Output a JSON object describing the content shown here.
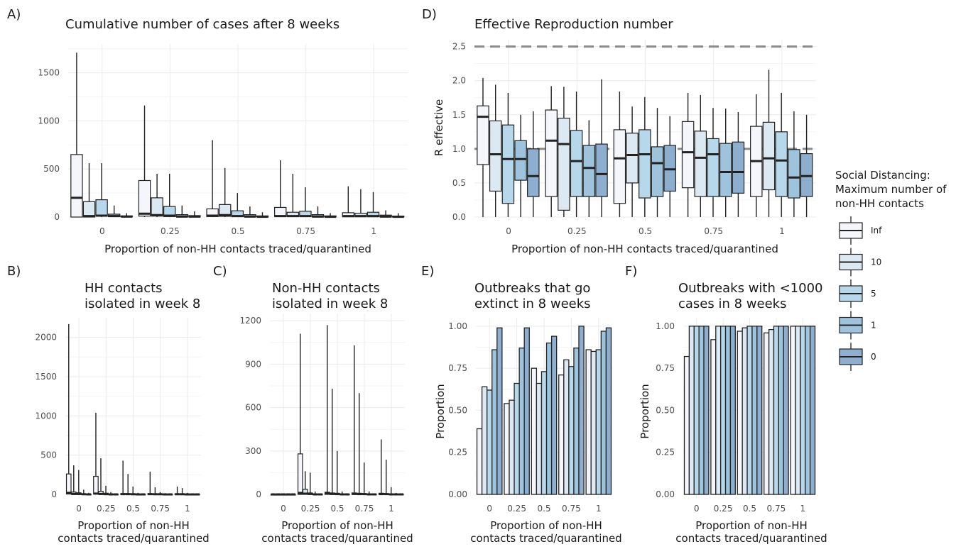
{
  "colors": {
    "Inf": "#f4f6fb",
    "10": "#dce9f3",
    "5": "#b7d8ea",
    "1": "#9ec3dc",
    "0": "#8eaed0",
    "refline": "#8a8a8a"
  },
  "legend": {
    "title_lines": [
      "Social Distancing:",
      "Maximum number of",
      "non-HH contacts"
    ],
    "items": [
      "Inf",
      "10",
      "5",
      "1",
      "0"
    ]
  },
  "chart_data": [
    {
      "id": "A",
      "letter": "A)",
      "type": "boxplot",
      "title_lines": [
        "Cumulative number of cases after 8 weeks"
      ],
      "xlabel_lines": [
        "Proportion of non-HH contacts traced/quarantined"
      ],
      "ylabel": "",
      "categories": [
        "0",
        "0.25",
        "0.5",
        "0.75",
        "1"
      ],
      "ylim": [
        0,
        1800
      ],
      "yticks": [
        0,
        500,
        1000,
        1500
      ],
      "ytick_labels": [
        "0",
        "500",
        "1000",
        "1500"
      ],
      "series_order": [
        "Inf",
        "10",
        "5",
        "1",
        "0"
      ],
      "boxes": [
        [
          [
            0,
            0,
            200,
            650,
            1710
          ],
          [
            0,
            0,
            10,
            160,
            560
          ],
          [
            0,
            10,
            15,
            180,
            560
          ],
          [
            0,
            5,
            10,
            30,
            120
          ],
          [
            0,
            3,
            5,
            12,
            40
          ]
        ],
        [
          [
            0,
            10,
            35,
            380,
            1160
          ],
          [
            0,
            10,
            20,
            200,
            450
          ],
          [
            0,
            5,
            15,
            110,
            450
          ],
          [
            0,
            3,
            5,
            25,
            120
          ],
          [
            0,
            2,
            5,
            15,
            60
          ]
        ],
        [
          [
            0,
            5,
            15,
            85,
            800
          ],
          [
            0,
            8,
            20,
            130,
            510
          ],
          [
            0,
            5,
            10,
            65,
            250
          ],
          [
            0,
            3,
            5,
            25,
            110
          ],
          [
            0,
            2,
            3,
            12,
            50
          ]
        ],
        [
          [
            0,
            5,
            10,
            100,
            590
          ],
          [
            0,
            5,
            10,
            50,
            450
          ],
          [
            0,
            5,
            10,
            60,
            310
          ],
          [
            0,
            2,
            5,
            25,
            110
          ],
          [
            0,
            2,
            3,
            12,
            40
          ]
        ],
        [
          [
            0,
            3,
            10,
            45,
            320
          ],
          [
            0,
            3,
            10,
            40,
            290
          ],
          [
            0,
            3,
            10,
            50,
            260
          ],
          [
            0,
            2,
            5,
            20,
            70
          ],
          [
            0,
            2,
            3,
            10,
            40
          ]
        ]
      ]
    },
    {
      "id": "D",
      "letter": "D)",
      "type": "boxplot",
      "title_lines": [
        "Effective Reproduction number"
      ],
      "xlabel_lines": [
        "Proportion of non-HH contacts traced/quarantined"
      ],
      "ylabel": "R effective",
      "categories": [
        "0",
        "0.25",
        "0.5",
        "0.75",
        "1"
      ],
      "ylim": [
        0,
        2.6
      ],
      "yticks": [
        0,
        0.5,
        1,
        1.5,
        2,
        2.5
      ],
      "ytick_labels": [
        "0.0",
        "0.5",
        "1.0",
        "1.5",
        "2.0",
        "2.5"
      ],
      "reference_lines": [
        1.0,
        2.5
      ],
      "series_order": [
        "Inf",
        "10",
        "5",
        "1",
        "0"
      ],
      "boxes": [
        [
          [
            0,
            0.77,
            1.47,
            1.63,
            2.04
          ],
          [
            0,
            0.38,
            0.92,
            1.41,
            1.94
          ],
          [
            0,
            0.2,
            0.85,
            1.35,
            1.82
          ],
          [
            0,
            0.54,
            0.85,
            1.12,
            1.5
          ],
          [
            0,
            0.3,
            0.6,
            1.0,
            1.55
          ]
        ],
        [
          [
            0,
            0.3,
            1.12,
            1.57,
            1.92
          ],
          [
            0,
            0.1,
            1.07,
            1.45,
            1.91
          ],
          [
            0,
            0.3,
            0.82,
            1.27,
            1.84
          ],
          [
            0,
            0.3,
            0.72,
            1.05,
            1.42
          ],
          [
            0,
            0.3,
            0.63,
            1.07,
            2.02
          ]
        ],
        [
          [
            0,
            0.2,
            0.86,
            1.28,
            1.84
          ],
          [
            0,
            0.5,
            0.91,
            1.23,
            1.62
          ],
          [
            0,
            0.28,
            0.92,
            1.28,
            1.76
          ],
          [
            0,
            0.3,
            0.79,
            1.03,
            1.6
          ],
          [
            0,
            0.38,
            0.7,
            1.05,
            1.48
          ]
        ],
        [
          [
            0,
            0.43,
            0.95,
            1.4,
            1.82
          ],
          [
            0,
            0.3,
            0.87,
            1.26,
            1.79
          ],
          [
            0,
            0.3,
            0.92,
            1.15,
            1.6
          ],
          [
            0,
            0.3,
            0.66,
            1.08,
            1.59
          ],
          [
            0,
            0.35,
            0.66,
            1.1,
            1.54
          ]
        ],
        [
          [
            0,
            0.3,
            0.82,
            1.33,
            1.8
          ],
          [
            0,
            0.4,
            0.86,
            1.39,
            2.16
          ],
          [
            0,
            0.3,
            0.83,
            1.25,
            1.82
          ],
          [
            0,
            0.28,
            0.58,
            0.99,
            1.55
          ],
          [
            0,
            0.3,
            0.6,
            0.93,
            1.5
          ]
        ]
      ]
    },
    {
      "id": "B",
      "letter": "B)",
      "type": "boxplot",
      "title_lines": [
        "HH contacts",
        "isolated in week 8"
      ],
      "xlabel_lines": [
        "Proportion of non-HH",
        "contacts traced/quarantined"
      ],
      "ylabel": "",
      "categories": [
        "0",
        "0.25",
        "0.5",
        "0.75",
        "1"
      ],
      "ylim": [
        0,
        2250
      ],
      "yticks": [
        0,
        500,
        1000,
        1500,
        2000
      ],
      "ytick_labels": [
        "0",
        "500",
        "1000",
        "1500",
        "2000"
      ],
      "series_order": [
        "Inf",
        "10",
        "5",
        "1",
        "0"
      ],
      "boxes": [
        [
          [
            0,
            5,
            20,
            260,
            2170
          ],
          [
            0,
            0,
            5,
            30,
            370
          ],
          [
            0,
            0,
            5,
            20,
            310
          ],
          [
            0,
            0,
            2,
            8,
            60
          ],
          [
            0,
            0,
            0,
            3,
            20
          ]
        ],
        [
          [
            0,
            5,
            10,
            230,
            1040
          ],
          [
            0,
            0,
            5,
            40,
            460
          ],
          [
            0,
            0,
            3,
            15,
            110
          ],
          [
            0,
            0,
            0,
            5,
            30
          ],
          [
            0,
            0,
            0,
            3,
            10
          ]
        ],
        [
          [
            0,
            0,
            3,
            10,
            430
          ],
          [
            0,
            0,
            3,
            10,
            260
          ],
          [
            0,
            0,
            2,
            8,
            100
          ],
          [
            0,
            0,
            0,
            3,
            20
          ],
          [
            0,
            0,
            0,
            2,
            8
          ]
        ],
        [
          [
            0,
            0,
            3,
            10,
            290
          ],
          [
            0,
            0,
            2,
            8,
            90
          ],
          [
            0,
            0,
            2,
            5,
            30
          ],
          [
            0,
            0,
            0,
            3,
            15
          ],
          [
            0,
            0,
            0,
            2,
            5
          ]
        ],
        [
          [
            0,
            0,
            2,
            8,
            100
          ],
          [
            0,
            0,
            2,
            5,
            80
          ],
          [
            0,
            0,
            0,
            3,
            20
          ],
          [
            0,
            0,
            0,
            2,
            10
          ],
          [
            0,
            0,
            0,
            2,
            5
          ]
        ]
      ]
    },
    {
      "id": "C",
      "letter": "C)",
      "type": "boxplot",
      "title_lines": [
        "Non-HH contacts",
        "isolated in week 8"
      ],
      "xlabel_lines": [
        "Proportion of non-HH",
        "contacts traced/quarantined"
      ],
      "ylabel": "",
      "categories": [
        "0",
        "0.25",
        "0.5",
        "0.75",
        "1"
      ],
      "ylim": [
        0,
        1250
      ],
      "yticks": [
        0,
        300,
        600,
        900,
        1200
      ],
      "ytick_labels": [
        "0",
        "300",
        "600",
        "900",
        "1200"
      ],
      "series_order": [
        "Inf",
        "10",
        "5",
        "1",
        "0"
      ],
      "boxes": [
        [
          [
            0,
            0,
            0,
            0,
            0
          ],
          [
            0,
            0,
            0,
            0,
            0
          ],
          [
            0,
            0,
            0,
            0,
            0
          ],
          [
            0,
            0,
            0,
            0,
            0
          ],
          [
            0,
            0,
            0,
            0,
            0
          ]
        ],
        [
          [
            0,
            0,
            10,
            280,
            1110
          ],
          [
            0,
            0,
            5,
            35,
            160
          ],
          [
            0,
            0,
            3,
            10,
            150
          ],
          [
            0,
            0,
            0,
            3,
            20
          ],
          [
            0,
            0,
            0,
            2,
            5
          ]
        ],
        [
          [
            0,
            0,
            5,
            15,
            1170
          ],
          [
            0,
            0,
            3,
            10,
            730
          ],
          [
            0,
            0,
            2,
            8,
            300
          ],
          [
            0,
            0,
            0,
            3,
            20
          ],
          [
            0,
            0,
            0,
            2,
            5
          ]
        ],
        [
          [
            0,
            0,
            3,
            10,
            1030
          ],
          [
            0,
            0,
            2,
            8,
            700
          ],
          [
            0,
            0,
            2,
            5,
            220
          ],
          [
            0,
            0,
            0,
            3,
            20
          ],
          [
            0,
            0,
            0,
            2,
            5
          ]
        ],
        [
          [
            0,
            0,
            2,
            8,
            380
          ],
          [
            0,
            0,
            2,
            5,
            240
          ],
          [
            0,
            0,
            0,
            3,
            50
          ],
          [
            0,
            0,
            0,
            2,
            10
          ],
          [
            0,
            0,
            0,
            2,
            5
          ]
        ]
      ]
    },
    {
      "id": "E",
      "letter": "E)",
      "type": "bar",
      "title_lines": [
        "Outbreaks that go",
        "extinct in 8 weeks"
      ],
      "xlabel_lines": [
        "Proportion of non-HH",
        "contacts traced/quarantined"
      ],
      "ylabel": "Proportion",
      "categories": [
        "0",
        "0.25",
        "0.5",
        "0.75",
        "1"
      ],
      "ylim": [
        0,
        1.05
      ],
      "yticks": [
        0,
        0.25,
        0.5,
        0.75,
        1
      ],
      "ytick_labels": [
        "0.00",
        "0.25",
        "0.50",
        "0.75",
        "1.00"
      ],
      "series_order": [
        "Inf",
        "10",
        "5",
        "1",
        "0"
      ],
      "values": [
        [
          0.39,
          0.64,
          0.62,
          0.86,
          0.99
        ],
        [
          0.54,
          0.56,
          0.66,
          0.87,
          0.99
        ],
        [
          0.75,
          0.66,
          0.73,
          0.9,
          0.94
        ],
        [
          0.71,
          0.8,
          0.76,
          0.87,
          1.0
        ],
        [
          0.86,
          0.85,
          0.86,
          0.97,
          0.99
        ]
      ]
    },
    {
      "id": "F",
      "letter": "F)",
      "type": "bar",
      "title_lines": [
        "Outbreaks with <1000",
        "cases in 8 weeks"
      ],
      "xlabel_lines": [
        "Proportion of non-HH",
        "contacts traced/quarantined"
      ],
      "ylabel": "Proportion",
      "categories": [
        "0",
        "0.25",
        "0.5",
        "0.75",
        "1"
      ],
      "ylim": [
        0,
        1.05
      ],
      "yticks": [
        0,
        0.25,
        0.5,
        0.75,
        1
      ],
      "ytick_labels": [
        "0.00",
        "0.25",
        "0.50",
        "0.75",
        "1.00"
      ],
      "series_order": [
        "Inf",
        "10",
        "5",
        "1",
        "0"
      ],
      "values": [
        [
          0.82,
          1.0,
          1.0,
          1.0,
          1.0
        ],
        [
          0.92,
          1.0,
          1.0,
          1.0,
          1.0
        ],
        [
          0.97,
          0.99,
          1.0,
          1.0,
          1.0
        ],
        [
          0.96,
          0.98,
          1.0,
          1.0,
          1.0
        ],
        [
          1.0,
          1.0,
          1.0,
          1.0,
          1.0
        ]
      ]
    }
  ]
}
